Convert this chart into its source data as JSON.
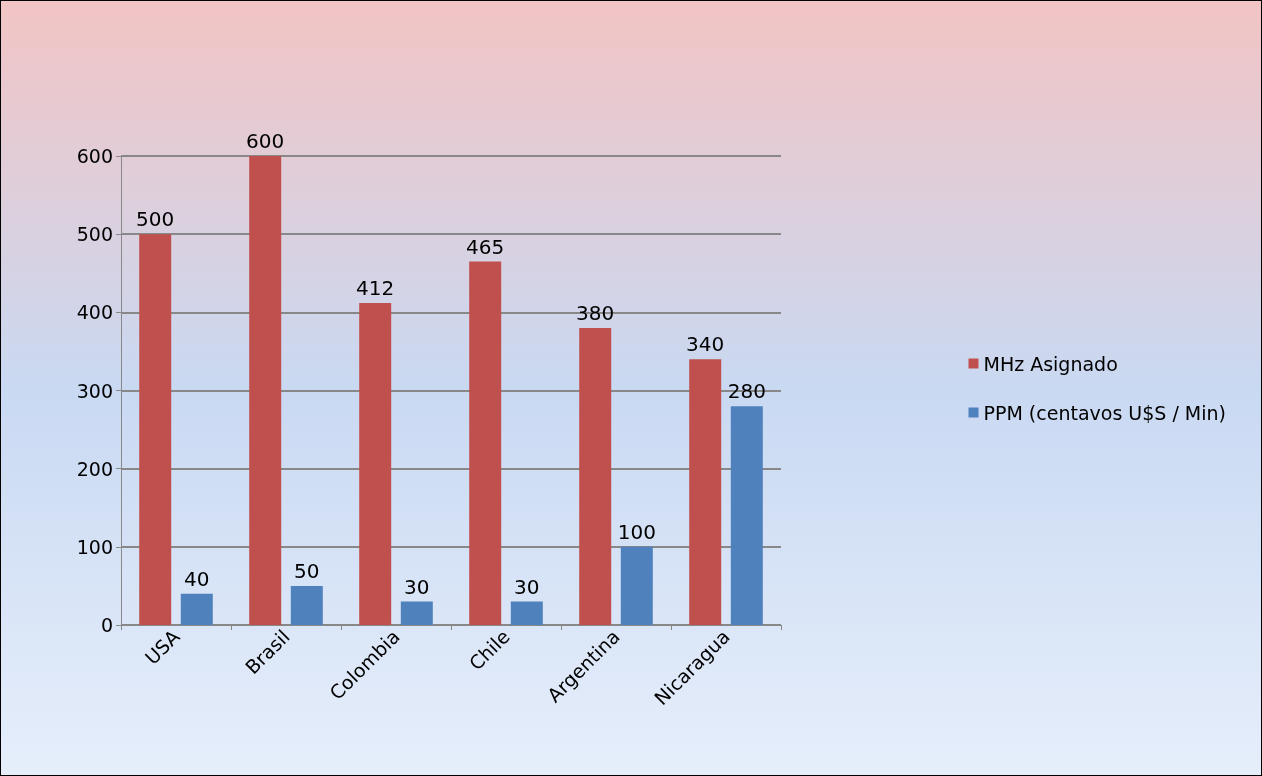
{
  "chart_data": {
    "type": "bar",
    "categories": [
      "USA",
      "Brasil",
      "Colombia",
      "Chile",
      "Argentina",
      "Nicaragua"
    ],
    "series": [
      {
        "name": "MHz Asignado",
        "color": "#c0504d",
        "values": [
          500,
          600,
          412,
          465,
          380,
          340
        ]
      },
      {
        "name": "PPM (centavos U$S / Min)",
        "color": "#4f81bd",
        "values": [
          40,
          50,
          30,
          30,
          100,
          280
        ]
      }
    ],
    "ylim": [
      0,
      600
    ],
    "yticks": [
      0,
      100,
      200,
      300,
      400,
      500,
      600
    ],
    "grid": "y",
    "legend": "right",
    "data_labels": true
  }
}
